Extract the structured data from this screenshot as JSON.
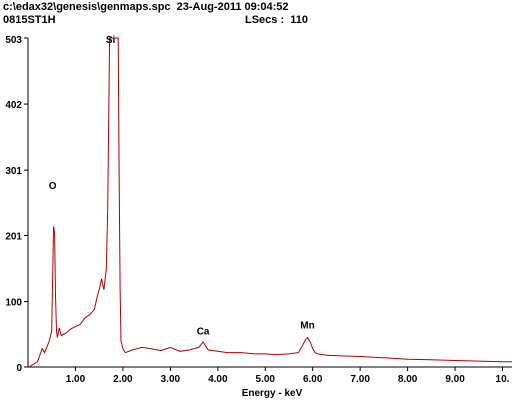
{
  "header": {
    "file_line": "c:\\edax32\\genesis\\genmaps.spc  23-Aug-2011 09:04:52",
    "sample_id": "0815ST1H",
    "lsecs_label": "LSecs :",
    "lsecs_value": "110"
  },
  "colors": {
    "spectrum": "#b00000",
    "axis": "#000000",
    "background": "#ffffff"
  },
  "chart_data": {
    "type": "line",
    "title": "",
    "xlabel": "Energy - keV",
    "ylabel": "",
    "xlim": [
      0.0,
      10.2
    ],
    "ylim": [
      0,
      503
    ],
    "x_ticks": [
      1.0,
      2.0,
      3.0,
      4.0,
      5.0,
      6.0,
      7.0,
      8.0,
      9.0,
      10.0
    ],
    "x_tick_labels": [
      "1.00",
      "2.00",
      "3.00",
      "4.00",
      "5.00",
      "6.00",
      "7.00",
      "8.00",
      "9.00",
      "10."
    ],
    "y_ticks": [
      0,
      100,
      201,
      301,
      402,
      503
    ],
    "y_tick_labels": [
      "0",
      "100",
      "201",
      "301",
      "402",
      "503"
    ],
    "grid": false,
    "series": [
      {
        "x": [
          0.02,
          0.2,
          0.3,
          0.35,
          0.45,
          0.5,
          0.52,
          0.54,
          0.56,
          0.58,
          0.6,
          0.62,
          0.66,
          0.7,
          0.8,
          0.9,
          1.0,
          1.1,
          1.2,
          1.3,
          1.4,
          1.45,
          1.5,
          1.55,
          1.6,
          1.65,
          1.68,
          1.7,
          1.72,
          1.74,
          1.85,
          1.9,
          1.92,
          1.94,
          1.96,
          2.0,
          2.05,
          2.2,
          2.4,
          2.6,
          2.8,
          3.0,
          3.2,
          3.4,
          3.6,
          3.69,
          3.8,
          4.0,
          4.2,
          4.5,
          4.8,
          5.0,
          5.2,
          5.5,
          5.7,
          5.8,
          5.85,
          5.89,
          5.95,
          6.0,
          6.05,
          6.1,
          6.3,
          6.6,
          7.0,
          7.5,
          8.0,
          8.5,
          9.0,
          9.5,
          10.0,
          10.2
        ],
        "y": [
          0,
          8,
          28,
          22,
          40,
          55,
          140,
          215,
          205,
          110,
          55,
          45,
          60,
          48,
          52,
          58,
          62,
          65,
          75,
          80,
          88,
          105,
          118,
          135,
          118,
          150,
          240,
          380,
          503,
          503,
          503,
          503,
          300,
          120,
          40,
          28,
          22,
          26,
          30,
          28,
          25,
          30,
          24,
          26,
          30,
          38,
          26,
          24,
          22,
          22,
          20,
          20,
          19,
          20,
          22,
          35,
          42,
          45,
          38,
          28,
          22,
          20,
          18,
          17,
          16,
          14,
          12,
          11,
          10,
          9,
          8,
          8
        ]
      }
    ],
    "annotations": [
      {
        "text": "O",
        "x": 0.52,
        "y": 272
      },
      {
        "text": "Si",
        "x": 1.74,
        "y": 495
      },
      {
        "text": "Ca",
        "x": 3.69,
        "y": 50
      },
      {
        "text": "Mn",
        "x": 5.89,
        "y": 59
      }
    ]
  }
}
